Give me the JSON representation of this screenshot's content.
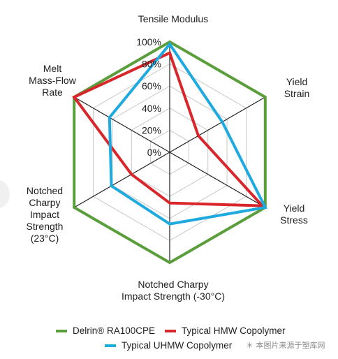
{
  "chart_data": {
    "type": "radar",
    "axes": [
      "Tensile Modulus",
      "Yield Strain",
      "Yield Stress",
      "Notched Charpy Impact Strength (-30°C)",
      "Notched Charpy Impact Strength (23°C)",
      "Melt Mass-Flow Rate"
    ],
    "axis_label_lines": [
      [
        "Tensile Modulus"
      ],
      [
        "Yield",
        "Strain"
      ],
      [
        "Yield",
        "Stress"
      ],
      [
        "Notched Charpy",
        "Impact Strength (-30°C)"
      ],
      [
        "Notched",
        "Charpy",
        "Impact",
        "Strength",
        "(23°C)"
      ],
      [
        "Melt",
        "Mass-Flow",
        "Rate"
      ]
    ],
    "tick_labels": [
      "0%",
      "20%",
      "40%",
      "60%",
      "80%",
      "100%"
    ],
    "rlim": [
      0,
      100
    ],
    "grid": true,
    "legend_position": "bottom",
    "series": [
      {
        "name": "Delrin® RA100CPE",
        "color": "#5a9e3c",
        "values": [
          100,
          100,
          100,
          100,
          100,
          100
        ]
      },
      {
        "name": "Typical HMW Copolymer",
        "color": "#d9262b",
        "values": [
          90,
          30,
          97,
          46,
          40,
          100
        ]
      },
      {
        "name": "Typical UHMW Copolymer",
        "color": "#1eaadf",
        "values": [
          98,
          55,
          100,
          65,
          61,
          63
        ]
      }
    ]
  },
  "watermark": "＊ 本图片来源于塑库网"
}
